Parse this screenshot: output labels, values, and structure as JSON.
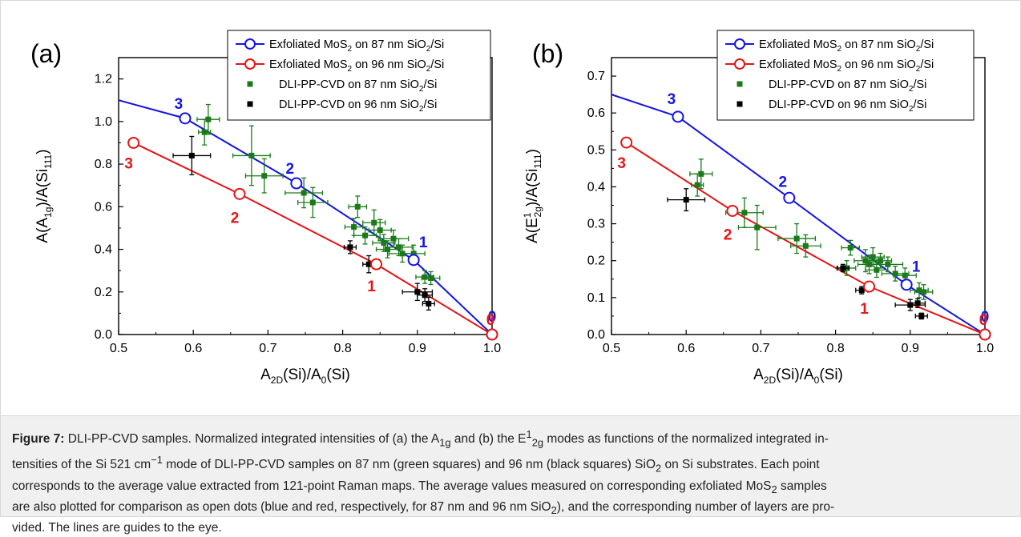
{
  "colors": {
    "blue": "#1414e6",
    "red": "#e61414",
    "green": "#1a7a1a",
    "black": "#000000"
  },
  "legend": {
    "exf87_prefix": "Exfoliated MoS",
    "exf87_mid": " on 87 nm SiO",
    "exf87_suffix": "/Si",
    "exf96_prefix": "Exfoliated MoS",
    "exf96_mid": " on 96 nm SiO",
    "exf96_suffix": "/Si",
    "sub2": "2",
    "dli87_prefix": "DLI-PP-CVD on 87 nm SiO",
    "dli87_suffix": "/Si",
    "dli96_prefix": "DLI-PP-CVD on 96 nm SiO",
    "dli96_suffix": "/Si"
  },
  "caption": {
    "figure_label": "Figure 7:",
    "t1": " DLI-PP-CVD samples. Normalized integrated intensities of (a) the A",
    "s1": "1g",
    "t2": " and (b) the E",
    "p1": "1",
    "s2": "2g",
    "t3": " modes as functions of the normalized integrated in-",
    "line2": "tensities of the Si 521 cm",
    "p2": "−1",
    "t4": " mode of DLI-PP-CVD samples on 87 nm (green squares) and 96 nm (black squares) SiO",
    "s3": "2",
    "t5": " on Si substrates. Each point",
    "line3": "corresponds to the average value extracted from 121-point Raman maps. The average values measured on corresponding exfoliated MoS",
    "s4": "2",
    "t6": " samples",
    "line4": "are also plotted for comparison as open dots (blue and red, respectively, for 87 nm and 96 nm SiO",
    "s5": "2",
    "t7": "), and the corresponding number of layers are pro-",
    "line5": "vided. The lines are guides to the eye."
  },
  "chart_data": [
    {
      "type": "scatter",
      "panel_label": "(a)",
      "xlabel_main": "A",
      "xlabel_sub1": "2D",
      "xlabel_mid": "(Si)/A",
      "xlabel_sub2": "0",
      "xlabel_end": "(Si)",
      "ylabel_pre": "A(A",
      "ylabel_sub1": "1g",
      "ylabel_mid": ")/A(Si",
      "ylabel_sub2": "111",
      "ylabel_end": ")",
      "xlim": [
        0.5,
        1.0
      ],
      "ylim": [
        0.0,
        1.3
      ],
      "xticks": [
        "0.5",
        "0.6",
        "0.7",
        "0.8",
        "0.9",
        "1.0"
      ],
      "yticks": [
        "0.0",
        "0.2",
        "0.4",
        "0.6",
        "0.8",
        "1.0",
        "1.2"
      ],
      "blue_line_start": [
        0.5,
        1.1
      ],
      "exf87": {
        "x": [
          0.589,
          0.738,
          0.895,
          1.0
        ],
        "y": [
          1.015,
          0.71,
          0.35,
          0.0
        ],
        "labels": [
          "3",
          "2",
          "1",
          "0"
        ]
      },
      "exf96": {
        "x": [
          0.52,
          0.662,
          0.845,
          1.0
        ],
        "y": [
          0.9,
          0.66,
          0.33,
          0.0
        ],
        "labels": [
          "3",
          "2",
          "1",
          "0"
        ]
      },
      "dli87": [
        {
          "x": 0.615,
          "y": 0.95,
          "xe": 0.008,
          "ye": 0.06
        },
        {
          "x": 0.62,
          "y": 1.01,
          "xe": 0.015,
          "ye": 0.07
        },
        {
          "x": 0.678,
          "y": 0.84,
          "xe": 0.025,
          "ye": 0.14
        },
        {
          "x": 0.695,
          "y": 0.745,
          "xe": 0.025,
          "ye": 0.08
        },
        {
          "x": 0.748,
          "y": 0.665,
          "xe": 0.025,
          "ye": 0.07
        },
        {
          "x": 0.76,
          "y": 0.62,
          "xe": 0.02,
          "ye": 0.07
        },
        {
          "x": 0.815,
          "y": 0.505,
          "xe": 0.012,
          "ye": 0.04
        },
        {
          "x": 0.82,
          "y": 0.6,
          "xe": 0.012,
          "ye": 0.05
        },
        {
          "x": 0.83,
          "y": 0.465,
          "xe": 0.015,
          "ye": 0.04
        },
        {
          "x": 0.842,
          "y": 0.525,
          "xe": 0.015,
          "ye": 0.06
        },
        {
          "x": 0.85,
          "y": 0.49,
          "xe": 0.015,
          "ye": 0.05
        },
        {
          "x": 0.855,
          "y": 0.43,
          "xe": 0.015,
          "ye": 0.04
        },
        {
          "x": 0.86,
          "y": 0.4,
          "xe": 0.015,
          "ye": 0.04
        },
        {
          "x": 0.868,
          "y": 0.45,
          "xe": 0.02,
          "ye": 0.04
        },
        {
          "x": 0.875,
          "y": 0.41,
          "xe": 0.018,
          "ye": 0.04
        },
        {
          "x": 0.88,
          "y": 0.38,
          "xe": 0.018,
          "ye": 0.04
        },
        {
          "x": 0.895,
          "y": 0.38,
          "xe": 0.015,
          "ye": 0.04
        },
        {
          "x": 0.91,
          "y": 0.27,
          "xe": 0.012,
          "ye": 0.03
        },
        {
          "x": 0.918,
          "y": 0.265,
          "xe": 0.012,
          "ye": 0.03
        }
      ],
      "dli96": [
        {
          "x": 0.598,
          "y": 0.84,
          "xe": 0.025,
          "ye": 0.09
        },
        {
          "x": 0.81,
          "y": 0.41,
          "xe": 0.008,
          "ye": 0.03
        },
        {
          "x": 0.835,
          "y": 0.33,
          "xe": 0.008,
          "ye": 0.04
        },
        {
          "x": 0.9,
          "y": 0.2,
          "xe": 0.02,
          "ye": 0.04
        },
        {
          "x": 0.91,
          "y": 0.185,
          "xe": 0.01,
          "ye": 0.03
        },
        {
          "x": 0.915,
          "y": 0.145,
          "xe": 0.008,
          "ye": 0.03
        }
      ]
    },
    {
      "type": "scatter",
      "panel_label": "(b)",
      "xlabel_main": "A",
      "xlabel_sub1": "2D",
      "xlabel_mid": "(Si)/A",
      "xlabel_sub2": "0",
      "xlabel_end": "(Si)",
      "ylabel_pre": "A(E",
      "ylabel_sup": "1",
      "ylabel_sub1": "2g",
      "ylabel_mid": ")/A(Si",
      "ylabel_sub2": "111",
      "ylabel_end": ")",
      "xlim": [
        0.5,
        1.0
      ],
      "ylim": [
        0.0,
        0.75
      ],
      "xticks": [
        "0.5",
        "0.6",
        "0.7",
        "0.8",
        "0.9",
        "1.0"
      ],
      "yticks": [
        "0.0",
        "0.1",
        "0.2",
        "0.3",
        "0.4",
        "0.5",
        "0.6",
        "0.7"
      ],
      "blue_line_start": [
        0.5,
        0.65
      ],
      "exf87": {
        "x": [
          0.589,
          0.738,
          0.895,
          1.0
        ],
        "y": [
          0.59,
          0.37,
          0.135,
          0.0
        ],
        "labels": [
          "3",
          "2",
          "1",
          "0"
        ]
      },
      "exf96": {
        "x": [
          0.52,
          0.662,
          0.845,
          1.0
        ],
        "y": [
          0.52,
          0.335,
          0.13,
          0.0
        ],
        "labels": [
          "3",
          "2",
          "1",
          "0"
        ]
      },
      "dli87": [
        {
          "x": 0.615,
          "y": 0.405,
          "xe": 0.008,
          "ye": 0.03
        },
        {
          "x": 0.62,
          "y": 0.435,
          "xe": 0.015,
          "ye": 0.04
        },
        {
          "x": 0.678,
          "y": 0.33,
          "xe": 0.025,
          "ye": 0.04
        },
        {
          "x": 0.695,
          "y": 0.29,
          "xe": 0.025,
          "ye": 0.06
        },
        {
          "x": 0.748,
          "y": 0.26,
          "xe": 0.025,
          "ye": 0.04
        },
        {
          "x": 0.76,
          "y": 0.24,
          "xe": 0.02,
          "ye": 0.03
        },
        {
          "x": 0.815,
          "y": 0.18,
          "xe": 0.012,
          "ye": 0.02
        },
        {
          "x": 0.82,
          "y": 0.235,
          "xe": 0.012,
          "ye": 0.02
        },
        {
          "x": 0.84,
          "y": 0.2,
          "xe": 0.015,
          "ye": 0.03
        },
        {
          "x": 0.845,
          "y": 0.19,
          "xe": 0.015,
          "ye": 0.025
        },
        {
          "x": 0.85,
          "y": 0.21,
          "xe": 0.015,
          "ye": 0.025
        },
        {
          "x": 0.855,
          "y": 0.175,
          "xe": 0.015,
          "ye": 0.02
        },
        {
          "x": 0.86,
          "y": 0.2,
          "xe": 0.015,
          "ye": 0.02
        },
        {
          "x": 0.87,
          "y": 0.19,
          "xe": 0.02,
          "ye": 0.02
        },
        {
          "x": 0.88,
          "y": 0.165,
          "xe": 0.018,
          "ye": 0.02
        },
        {
          "x": 0.893,
          "y": 0.16,
          "xe": 0.015,
          "ye": 0.02
        },
        {
          "x": 0.912,
          "y": 0.12,
          "xe": 0.012,
          "ye": 0.02
        },
        {
          "x": 0.918,
          "y": 0.115,
          "xe": 0.012,
          "ye": 0.02
        }
      ],
      "dli96": [
        {
          "x": 0.6,
          "y": 0.365,
          "xe": 0.025,
          "ye": 0.03
        },
        {
          "x": 0.81,
          "y": 0.18,
          "xe": 0.008,
          "ye": 0.01
        },
        {
          "x": 0.835,
          "y": 0.12,
          "xe": 0.008,
          "ye": 0.01
        },
        {
          "x": 0.9,
          "y": 0.08,
          "xe": 0.02,
          "ye": 0.015
        },
        {
          "x": 0.91,
          "y": 0.085,
          "xe": 0.01,
          "ye": 0.012
        },
        {
          "x": 0.915,
          "y": 0.05,
          "xe": 0.008,
          "ye": 0.008
        }
      ]
    }
  ]
}
